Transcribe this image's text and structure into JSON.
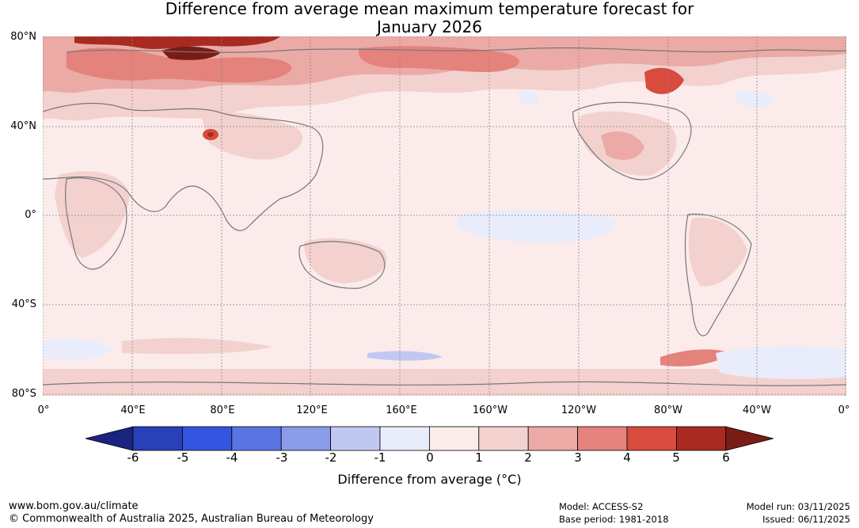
{
  "title": {
    "line1": "Difference from average mean maximum temperature forecast for",
    "line2": "January 2026"
  },
  "map": {
    "lat_labels": [
      "80°N",
      "40°N",
      "0°",
      "40°S",
      "80°S"
    ],
    "lon_labels": [
      "0°",
      "40°E",
      "80°E",
      "120°E",
      "160°E",
      "160°W",
      "120°W",
      "80°W",
      "40°W",
      "0°"
    ]
  },
  "colorbar": {
    "ticks": [
      "-6",
      "-5",
      "-4",
      "-3",
      "-2",
      "-1",
      "0",
      "1",
      "2",
      "3",
      "4",
      "5",
      "6"
    ],
    "colors": [
      "#1a237e",
      "#2a40b8",
      "#3355e0",
      "#5b74e3",
      "#8a9be8",
      "#c0c8f2",
      "#e9ecfa",
      "#fbebea",
      "#f3d1cf",
      "#ebaaa6",
      "#e4827c",
      "#d94a3f",
      "#a82a22",
      "#7a1c16"
    ],
    "label": "Difference from average (°C)"
  },
  "footer": {
    "url": "www.bom.gov.au/climate",
    "copyright": "© Commonwealth of Australia 2025, Australian Bureau of Meteorology",
    "model": "Model: ACCESS-S2",
    "base_period": "Base period: 1981-2018",
    "model_run": "Model run: 03/11/2025",
    "issued": "Issued: 06/11/2025"
  }
}
